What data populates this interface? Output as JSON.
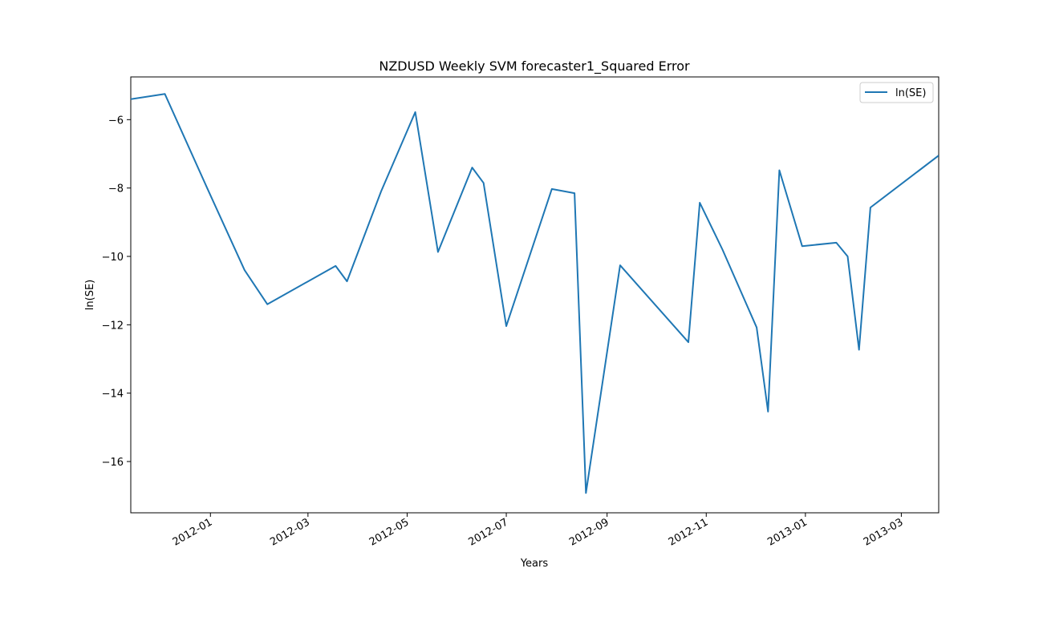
{
  "chart_data": {
    "type": "line",
    "title": "NZDUSD Weekly SVM forecaster1_Squared Error",
    "xlabel": "Years",
    "ylabel": "ln(SE)",
    "x_tick_labels": [
      "2012-01",
      "2012-03",
      "2012-05",
      "2012-07",
      "2012-09",
      "2012-11",
      "2013-01",
      "2013-03"
    ],
    "x_tick_dates": [
      "2012-01-01",
      "2012-03-01",
      "2012-05-01",
      "2012-07-01",
      "2012-09-01",
      "2012-11-01",
      "2013-01-01",
      "2013-03-01"
    ],
    "y_ticks": [
      -16,
      -14,
      -12,
      -10,
      -8,
      -6
    ],
    "y_tick_labels": [
      "−16",
      "−14",
      "−12",
      "−10",
      "−8",
      "−6"
    ],
    "xlim": [
      "2011-11-13",
      "2013-03-24"
    ],
    "ylim": [
      -17.5,
      -4.75
    ],
    "grid": false,
    "legend_position": "top-right",
    "series": [
      {
        "name": "ln(SE)",
        "color": "#1f77b4",
        "x": [
          "2011-11-13",
          "2011-12-04",
          "2011-12-30",
          "2012-01-22",
          "2012-02-05",
          "2012-03-18",
          "2012-03-25",
          "2012-04-15",
          "2012-05-06",
          "2012-05-20",
          "2012-06-10",
          "2012-06-17",
          "2012-07-01",
          "2012-07-29",
          "2012-08-12",
          "2012-08-19",
          "2012-09-09",
          "2012-10-21",
          "2012-10-28",
          "2012-11-11",
          "2012-12-02",
          "2012-12-09",
          "2012-12-16",
          "2012-12-30",
          "2013-01-20",
          "2013-01-27",
          "2013-02-03",
          "2013-02-10",
          "2013-03-24"
        ],
        "y": [
          -5.4,
          -5.25,
          -8.0,
          -10.4,
          -11.4,
          -10.28,
          -10.73,
          -8.1,
          -5.78,
          -9.87,
          -7.4,
          -7.85,
          -12.04,
          -8.03,
          -8.15,
          -16.92,
          -10.26,
          -12.51,
          -8.43,
          -9.8,
          -12.08,
          -14.54,
          -7.48,
          -9.7,
          -9.6,
          -10.0,
          -12.73,
          -8.57,
          -7.05
        ]
      }
    ]
  }
}
